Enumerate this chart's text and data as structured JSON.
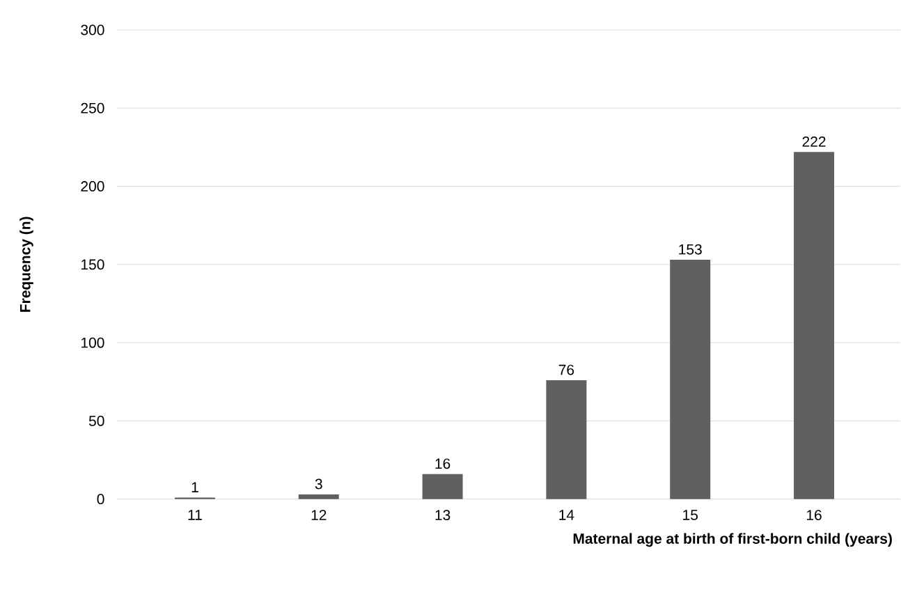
{
  "chart_data": {
    "type": "bar",
    "xlabel": "Maternal age at birth of first-born child (years)",
    "ylabel": "Frequency (n)",
    "categories": [
      "11",
      "12",
      "13",
      "14",
      "15",
      "16"
    ],
    "values": [
      1,
      3,
      16,
      76,
      153,
      222
    ],
    "color": "#606060",
    "ylim": [
      0,
      300
    ],
    "yticks": [
      0,
      50,
      100,
      150,
      200,
      250,
      300
    ],
    "grid": "y",
    "data_labels": true
  }
}
